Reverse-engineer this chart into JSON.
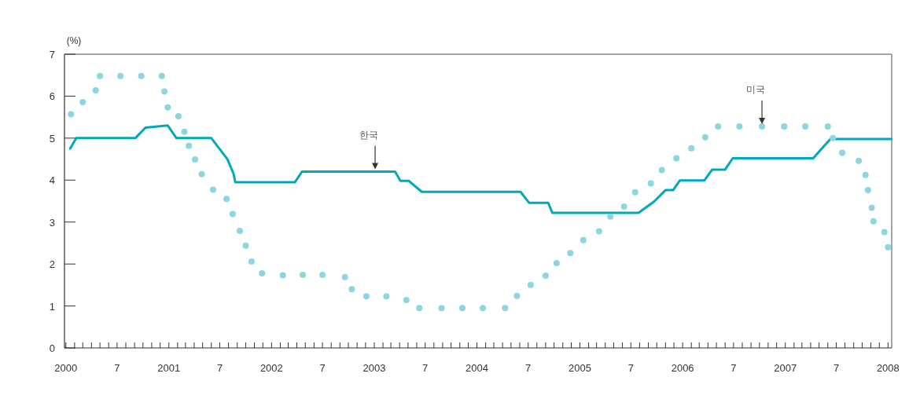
{
  "chart_data": {
    "type": "line",
    "ylabel": "(%)",
    "xlim": [
      "1999-12-27",
      "2008-01-14"
    ],
    "ylim": [
      0,
      7
    ],
    "yticks": [
      0,
      1,
      2,
      3,
      4,
      5,
      6,
      7
    ],
    "xticks": [
      {
        "value": "2000-01",
        "label": "2000"
      },
      {
        "value": "2000-02",
        "label": null
      },
      {
        "value": "2000-03",
        "label": null
      },
      {
        "value": "2000-04",
        "label": null
      },
      {
        "value": "2000-05",
        "label": null
      },
      {
        "value": "2000-06",
        "label": null
      },
      {
        "value": "2000-07",
        "label": "7"
      },
      {
        "value": "2000-08",
        "label": null
      },
      {
        "value": "2000-09",
        "label": null
      },
      {
        "value": "2000-10",
        "label": null
      },
      {
        "value": "2000-11",
        "label": null
      },
      {
        "value": "2000-12",
        "label": null
      },
      {
        "value": "2001-01",
        "label": "2001"
      },
      {
        "value": "2001-02",
        "label": null
      },
      {
        "value": "2001-03",
        "label": null
      },
      {
        "value": "2001-04",
        "label": null
      },
      {
        "value": "2001-05",
        "label": null
      },
      {
        "value": "2001-06",
        "label": null
      },
      {
        "value": "2001-07",
        "label": "7"
      },
      {
        "value": "2001-08",
        "label": null
      },
      {
        "value": "2001-09",
        "label": null
      },
      {
        "value": "2001-10",
        "label": null
      },
      {
        "value": "2001-11",
        "label": null
      },
      {
        "value": "2001-12",
        "label": null
      },
      {
        "value": "2002-01",
        "label": "2002"
      },
      {
        "value": "2002-02",
        "label": null
      },
      {
        "value": "2002-03",
        "label": null
      },
      {
        "value": "2002-04",
        "label": null
      },
      {
        "value": "2002-05",
        "label": null
      },
      {
        "value": "2002-06",
        "label": null
      },
      {
        "value": "2002-07",
        "label": "7"
      },
      {
        "value": "2002-08",
        "label": null
      },
      {
        "value": "2002-09",
        "label": null
      },
      {
        "value": "2002-10",
        "label": null
      },
      {
        "value": "2002-11",
        "label": null
      },
      {
        "value": "2002-12",
        "label": null
      },
      {
        "value": "2003-01",
        "label": "2003"
      },
      {
        "value": "2003-02",
        "label": null
      },
      {
        "value": "2003-03",
        "label": null
      },
      {
        "value": "2003-04",
        "label": null
      },
      {
        "value": "2003-05",
        "label": null
      },
      {
        "value": "2003-06",
        "label": null
      },
      {
        "value": "2003-07",
        "label": "7"
      },
      {
        "value": "2003-08",
        "label": null
      },
      {
        "value": "2003-09",
        "label": null
      },
      {
        "value": "2003-10",
        "label": null
      },
      {
        "value": "2003-11",
        "label": null
      },
      {
        "value": "2003-12",
        "label": null
      },
      {
        "value": "2004-01",
        "label": "2004"
      },
      {
        "value": "2004-02",
        "label": null
      },
      {
        "value": "2004-03",
        "label": null
      },
      {
        "value": "2004-04",
        "label": null
      },
      {
        "value": "2004-05",
        "label": null
      },
      {
        "value": "2004-06",
        "label": null
      },
      {
        "value": "2004-07",
        "label": "7"
      },
      {
        "value": "2004-08",
        "label": null
      },
      {
        "value": "2004-09",
        "label": null
      },
      {
        "value": "2004-10",
        "label": null
      },
      {
        "value": "2004-11",
        "label": null
      },
      {
        "value": "2004-12",
        "label": null
      },
      {
        "value": "2005-01",
        "label": "2005"
      },
      {
        "value": "2005-02",
        "label": null
      },
      {
        "value": "2005-03",
        "label": null
      },
      {
        "value": "2005-04",
        "label": null
      },
      {
        "value": "2005-05",
        "label": null
      },
      {
        "value": "2005-06",
        "label": null
      },
      {
        "value": "2005-07",
        "label": "7"
      },
      {
        "value": "2005-08",
        "label": null
      },
      {
        "value": "2005-09",
        "label": null
      },
      {
        "value": "2005-10",
        "label": null
      },
      {
        "value": "2005-11",
        "label": null
      },
      {
        "value": "2005-12",
        "label": null
      },
      {
        "value": "2006-01",
        "label": "2006"
      },
      {
        "value": "2006-02",
        "label": null
      },
      {
        "value": "2006-03",
        "label": null
      },
      {
        "value": "2006-04",
        "label": null
      },
      {
        "value": "2006-05",
        "label": null
      },
      {
        "value": "2006-06",
        "label": null
      },
      {
        "value": "2006-07",
        "label": "7"
      },
      {
        "value": "2006-08",
        "label": null
      },
      {
        "value": "2006-09",
        "label": null
      },
      {
        "value": "2006-10",
        "label": null
      },
      {
        "value": "2006-11",
        "label": null
      },
      {
        "value": "2006-12",
        "label": null
      },
      {
        "value": "2007-01",
        "label": "2007"
      },
      {
        "value": "2007-02",
        "label": null
      },
      {
        "value": "2007-03",
        "label": null
      },
      {
        "value": "2007-04",
        "label": null
      },
      {
        "value": "2007-05",
        "label": null
      },
      {
        "value": "2007-06",
        "label": null
      },
      {
        "value": "2007-07",
        "label": "7"
      },
      {
        "value": "2007-08",
        "label": null
      },
      {
        "value": "2007-09",
        "label": null
      },
      {
        "value": "2007-10",
        "label": null
      },
      {
        "value": "2007-11",
        "label": null
      },
      {
        "value": "2007-12",
        "label": null
      },
      {
        "value": "2008-01",
        "label": "2008"
      }
    ],
    "grid": false,
    "series": [
      {
        "type": "line",
        "color": "#00a9b9",
        "marker": "none",
        "line_style": "solid",
        "x": [
          "2000-01-16",
          "2000-02-07",
          "2000-09-04",
          "2000-10-10",
          "2000-12-28",
          "2001-01-28",
          "2001-06-01",
          "2001-07-28",
          "2001-08-19",
          "2001-08-25",
          "2002-03-25",
          "2002-04-19",
          "2003-01-04",
          "2003-03-16",
          "2003-04-04",
          "2003-05-04",
          "2003-06-19",
          "2004-06-04",
          "2004-07-04",
          "2004-09-10",
          "2004-09-25",
          "2005-07-28",
          "2005-09-22",
          "2005-11-01",
          "2005-11-28",
          "2005-12-22",
          "2006-03-19",
          "2006-04-16",
          "2006-06-01",
          "2006-06-28",
          "2007-04-10",
          "2007-06-10",
          "2008-01-13"
        ],
        "values": [
          4.75,
          5.0,
          5.0,
          5.25,
          5.3,
          5.0,
          5.0,
          4.5,
          4.15,
          3.95,
          3.95,
          4.2,
          4.2,
          4.2,
          3.98,
          3.98,
          3.72,
          3.72,
          3.46,
          3.46,
          3.22,
          3.22,
          3.49,
          3.76,
          3.76,
          3.99,
          3.99,
          4.25,
          4.25,
          4.52,
          4.52,
          4.98,
          4.98
        ]
      },
      {
        "type": "scatter",
        "color": "#8dd6e0",
        "marker": "circle",
        "line_style": "none",
        "x": [
          "2000-01-19",
          "2000-03-01",
          "2000-04-16",
          "2000-05-01",
          "2000-07-13",
          "2000-09-25",
          "2000-12-07",
          "2000-12-16",
          "2000-12-28",
          "2001-02-04",
          "2001-02-25",
          "2001-03-13",
          "2001-04-04",
          "2001-04-28",
          "2001-06-07",
          "2001-07-25",
          "2001-08-16",
          "2001-09-10",
          "2001-10-01",
          "2001-10-22",
          "2001-11-28",
          "2002-02-10",
          "2002-04-22",
          "2002-07-01",
          "2002-09-19",
          "2002-10-13",
          "2002-12-04",
          "2003-02-13",
          "2003-04-25",
          "2003-06-10",
          "2003-08-28",
          "2003-11-10",
          "2004-01-22",
          "2004-04-10",
          "2004-05-22",
          "2004-07-10",
          "2004-09-01",
          "2004-10-10",
          "2004-11-28",
          "2005-01-13",
          "2005-03-10",
          "2005-04-19",
          "2005-06-07",
          "2005-07-16",
          "2005-09-10",
          "2005-10-19",
          "2005-12-10",
          "2006-02-01",
          "2006-03-22",
          "2006-05-07",
          "2006-07-22",
          "2006-10-10",
          "2006-12-28",
          "2007-03-13",
          "2007-06-01",
          "2007-06-19",
          "2007-07-22",
          "2007-09-19",
          "2007-10-13",
          "2007-10-22",
          "2007-11-04",
          "2007-11-10",
          "2007-12-19",
          "2008-01-01"
        ],
        "values": [
          5.57,
          5.86,
          6.14,
          6.48,
          6.48,
          6.48,
          6.48,
          6.11,
          5.73,
          5.52,
          5.15,
          4.82,
          4.49,
          4.14,
          3.77,
          3.55,
          3.19,
          2.79,
          2.44,
          2.06,
          1.78,
          1.73,
          1.74,
          1.74,
          1.69,
          1.4,
          1.23,
          1.23,
          1.14,
          0.95,
          0.95,
          0.95,
          0.95,
          0.95,
          1.24,
          1.5,
          1.72,
          2.02,
          2.26,
          2.57,
          2.78,
          3.13,
          3.37,
          3.71,
          3.92,
          4.24,
          4.52,
          4.76,
          5.02,
          5.28,
          5.28,
          5.28,
          5.28,
          5.28,
          5.28,
          5.0,
          4.65,
          4.46,
          4.12,
          3.76,
          3.34,
          3.02,
          2.76,
          2.4
        ]
      }
    ],
    "annotations": [
      {
        "text": "한국",
        "x": "2003-01-04",
        "y": 4.2
      },
      {
        "text": "미국",
        "x": "2006-10-10",
        "y": 5.28
      }
    ]
  }
}
